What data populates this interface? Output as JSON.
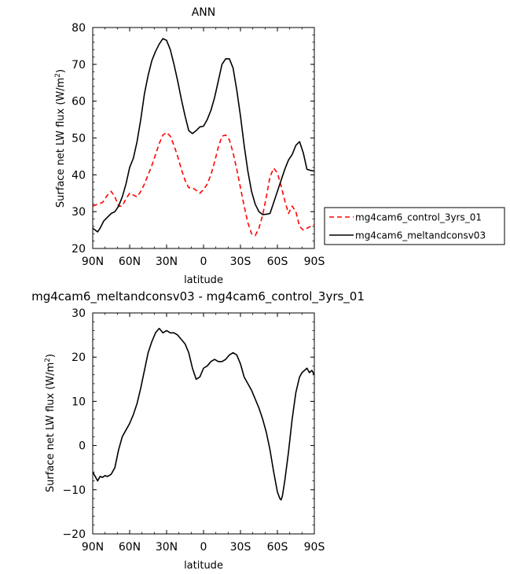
{
  "chart_data": [
    {
      "type": "line",
      "title": "ANN",
      "xlabel": "latitude",
      "ylabel": "Surface net LW flux (W/m²)",
      "ylabel_main": "Surface net LW flux (W/m",
      "ylabel_sup": "2",
      "ylabel_end": ")",
      "xlim": [
        90,
        -90
      ],
      "ylim": [
        20,
        80
      ],
      "xticks": [
        90,
        60,
        30,
        0,
        -30,
        -60,
        -90
      ],
      "xtick_labels": [
        "90N",
        "60N",
        "30N",
        "0",
        "30S",
        "60S",
        "90S"
      ],
      "yticks": [
        20,
        30,
        40,
        50,
        60,
        70,
        80
      ],
      "ytick_labels": [
        "20",
        "30",
        "40",
        "50",
        "60",
        "70",
        "80"
      ],
      "legend": {
        "placement": "right, outside plot"
      },
      "series": [
        {
          "name": "mg4cam6_control_3yrs_01",
          "color": "#ff0000",
          "dash": "dashed",
          "x": [
            90,
            86,
            82,
            78,
            75,
            72,
            69,
            66,
            63,
            60,
            57,
            54,
            51,
            48,
            45,
            42,
            39,
            36,
            33,
            30,
            27,
            24,
            21,
            18,
            15,
            12,
            9,
            6,
            3,
            0,
            -3,
            -6,
            -9,
            -12,
            -15,
            -18,
            -21,
            -24,
            -27,
            -30,
            -33,
            -36,
            -39,
            -42,
            -45,
            -48,
            -51,
            -54,
            -57,
            -60,
            -63,
            -66,
            -69,
            -72,
            -75,
            -78,
            -81,
            -84,
            -87,
            -90
          ],
          "y": [
            31.5,
            32,
            32.5,
            34.5,
            35.5,
            34,
            31.5,
            31.5,
            33.5,
            35,
            34.5,
            34,
            35.5,
            37.5,
            40,
            42.5,
            45.5,
            48.5,
            50.8,
            51.5,
            50.5,
            48,
            45,
            41.5,
            38.5,
            36.5,
            36.5,
            35.8,
            35,
            36,
            37.5,
            40,
            43.5,
            47.5,
            50.5,
            50.8,
            49.5,
            46,
            41.5,
            36.5,
            31.5,
            27,
            24,
            23.5,
            25.5,
            29,
            34,
            39.5,
            41.8,
            40.5,
            37,
            33,
            29.5,
            31.5,
            30,
            26,
            25,
            25.5,
            26,
            26.5
          ]
        },
        {
          "name": "mg4cam6_meltandconsv03",
          "color": "#000000",
          "dash": "solid",
          "x": [
            90,
            88,
            86,
            84,
            81,
            78,
            75,
            72,
            69,
            66,
            63,
            60,
            57,
            54,
            51,
            48,
            45,
            42,
            39,
            36,
            33,
            30,
            27,
            24,
            21,
            18,
            15,
            12,
            9,
            6,
            3,
            0,
            -3,
            -6,
            -9,
            -12,
            -15,
            -18,
            -21,
            -24,
            -27,
            -30,
            -33,
            -36,
            -39,
            -42,
            -45,
            -48,
            -51,
            -54,
            -57,
            -60,
            -63,
            -66,
            -69,
            -72,
            -75,
            -78,
            -81,
            -84,
            -87,
            -90
          ],
          "y": [
            25.5,
            25,
            24.5,
            25.5,
            27.5,
            28.5,
            29.5,
            30,
            31.5,
            34,
            37.5,
            42,
            44.5,
            49,
            55,
            62,
            67,
            71,
            73.5,
            75.5,
            77,
            76.5,
            74,
            70,
            65.5,
            60.5,
            56,
            52,
            51.2,
            52,
            53,
            53.2,
            55,
            57.5,
            61,
            65.5,
            70,
            71.5,
            71.5,
            69,
            63,
            56,
            48,
            41,
            35.5,
            32,
            30,
            29.2,
            29.3,
            29.5,
            32.5,
            35.5,
            38.5,
            41.5,
            44,
            45.5,
            48,
            49,
            46,
            41.5,
            41.2,
            41
          ]
        }
      ]
    },
    {
      "type": "line",
      "title": "mg4cam6_meltandconsv03 - mg4cam6_control_3yrs_01",
      "xlabel": "latitude",
      "ylabel": "Surface net LW flux (W/m²)",
      "ylabel_main": "Surface net LW flux (W/m",
      "ylabel_sup": "2",
      "ylabel_end": ")",
      "xlim": [
        90,
        -90
      ],
      "ylim": [
        -20,
        30
      ],
      "xticks": [
        90,
        60,
        30,
        0,
        -30,
        -60,
        -90
      ],
      "xtick_labels": [
        "90N",
        "60N",
        "30N",
        "0",
        "30S",
        "60S",
        "90S"
      ],
      "yticks": [
        -20,
        -10,
        0,
        10,
        20,
        30
      ],
      "ytick_labels": [
        "−20",
        "−10",
        "0",
        "10",
        "20",
        "30"
      ],
      "series": [
        {
          "color": "#000000",
          "dash": "solid",
          "x": [
            90,
            88,
            86,
            84,
            82,
            80,
            78,
            75,
            72,
            69,
            66,
            63,
            60,
            57,
            54,
            51,
            48,
            45,
            42,
            39,
            36,
            33,
            30,
            27,
            24,
            21,
            18,
            15,
            12,
            9,
            6,
            3,
            0,
            -3,
            -6,
            -9,
            -12,
            -15,
            -18,
            -21,
            -24,
            -27,
            -30,
            -33,
            -36,
            -39,
            -42,
            -45,
            -48,
            -51,
            -54,
            -57,
            -60,
            -62,
            -63,
            -64,
            -66,
            -69,
            -72,
            -75,
            -78,
            -80,
            -82,
            -84,
            -86,
            -88,
            -90
          ],
          "y": [
            -6,
            -7,
            -8,
            -7,
            -7.2,
            -6.8,
            -7,
            -6.5,
            -5,
            -1,
            2,
            3.5,
            5,
            7,
            9.5,
            13,
            17,
            21,
            23.5,
            25.5,
            26.5,
            25.5,
            26,
            25.5,
            25.5,
            25,
            24,
            23,
            21,
            17.5,
            15,
            15.5,
            17.5,
            18,
            19,
            19.5,
            19,
            19,
            19.5,
            20.5,
            21,
            20.5,
            18.5,
            15.5,
            14,
            12.5,
            10.5,
            8.5,
            6,
            3,
            -1,
            -6,
            -10.5,
            -12,
            -12.3,
            -11.5,
            -8,
            -1.5,
            6,
            12,
            15.5,
            16.5,
            17,
            17.5,
            16.5,
            17,
            16
          ]
        }
      ]
    }
  ]
}
